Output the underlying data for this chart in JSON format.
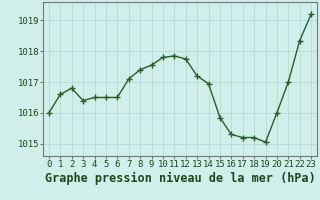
{
  "x": [
    0,
    1,
    2,
    3,
    4,
    5,
    6,
    7,
    8,
    9,
    10,
    11,
    12,
    13,
    14,
    15,
    16,
    17,
    18,
    19,
    20,
    21,
    22,
    23
  ],
  "y": [
    1016.0,
    1016.6,
    1016.8,
    1016.4,
    1016.5,
    1016.5,
    1016.5,
    1017.1,
    1017.4,
    1017.55,
    1017.8,
    1017.85,
    1017.75,
    1017.2,
    1016.95,
    1015.85,
    1015.3,
    1015.2,
    1015.2,
    1015.05,
    1016.0,
    1017.0,
    1018.35,
    1019.2
  ],
  "line_color": "#2a5c2a",
  "marker": "+",
  "marker_size": 5,
  "marker_color": "#2a5c2a",
  "bg_color": "#d0eeea",
  "grid_color": "#b0d8d2",
  "title": "Graphe pression niveau de la mer (hPa)",
  "title_color": "#1a4a1a",
  "title_fontsize": 8.5,
  "ylabel_ticks": [
    1015,
    1016,
    1017,
    1018,
    1019
  ],
  "ylim": [
    1014.6,
    1019.6
  ],
  "xlim": [
    -0.5,
    23.5
  ],
  "tick_color": "#1a4a1a",
  "tick_fontsize": 6.5,
  "spine_color": "#777777",
  "linewidth": 1.0
}
